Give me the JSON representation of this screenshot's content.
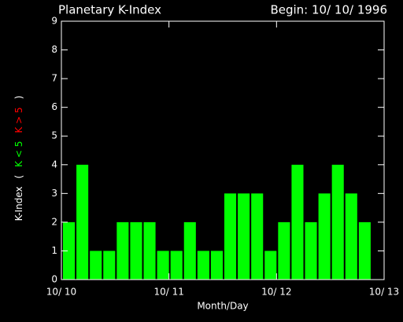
{
  "chart_data": {
    "type": "bar",
    "title": "Planetary K-Index",
    "subtitle": "Begin: 10/ 10/ 1996",
    "xlabel": "Month/Day",
    "ylabel_parts": [
      {
        "text": "K-Index",
        "color": "#ffffff"
      },
      {
        "text": "(",
        "color": "#ffffff"
      },
      {
        "text": "K < 5",
        "color": "#00ff00"
      },
      {
        "text": "K > 5",
        "color": "#ff0000"
      },
      {
        "text": ")",
        "color": "#ffffff"
      }
    ],
    "x": [
      0,
      0.125,
      0.25,
      0.375,
      0.5,
      0.625,
      0.75,
      0.875,
      1,
      1.125,
      1.25,
      1.375,
      1.5,
      1.625,
      1.75,
      1.875,
      2,
      2.125,
      2.25,
      2.375,
      2.5,
      2.625,
      2.75,
      2.875
    ],
    "bar_width": 0.125,
    "values": [
      2,
      4,
      1,
      1,
      2,
      2,
      2,
      1,
      1,
      2,
      1,
      1,
      3,
      3,
      3,
      1,
      2,
      4,
      2,
      3,
      4,
      3,
      2,
      null
    ],
    "color": "#00ff00",
    "xlim": [
      0,
      3
    ],
    "xticks": [
      {
        "value": 0,
        "label": "10/ 10"
      },
      {
        "value": 1,
        "label": "10/ 11"
      },
      {
        "value": 2,
        "label": "10/ 12"
      },
      {
        "value": 3,
        "label": "10/ 13"
      }
    ],
    "ylim": [
      0,
      9
    ],
    "yticks": [
      0,
      1,
      2,
      3,
      4,
      5,
      6,
      7,
      8,
      9
    ]
  }
}
